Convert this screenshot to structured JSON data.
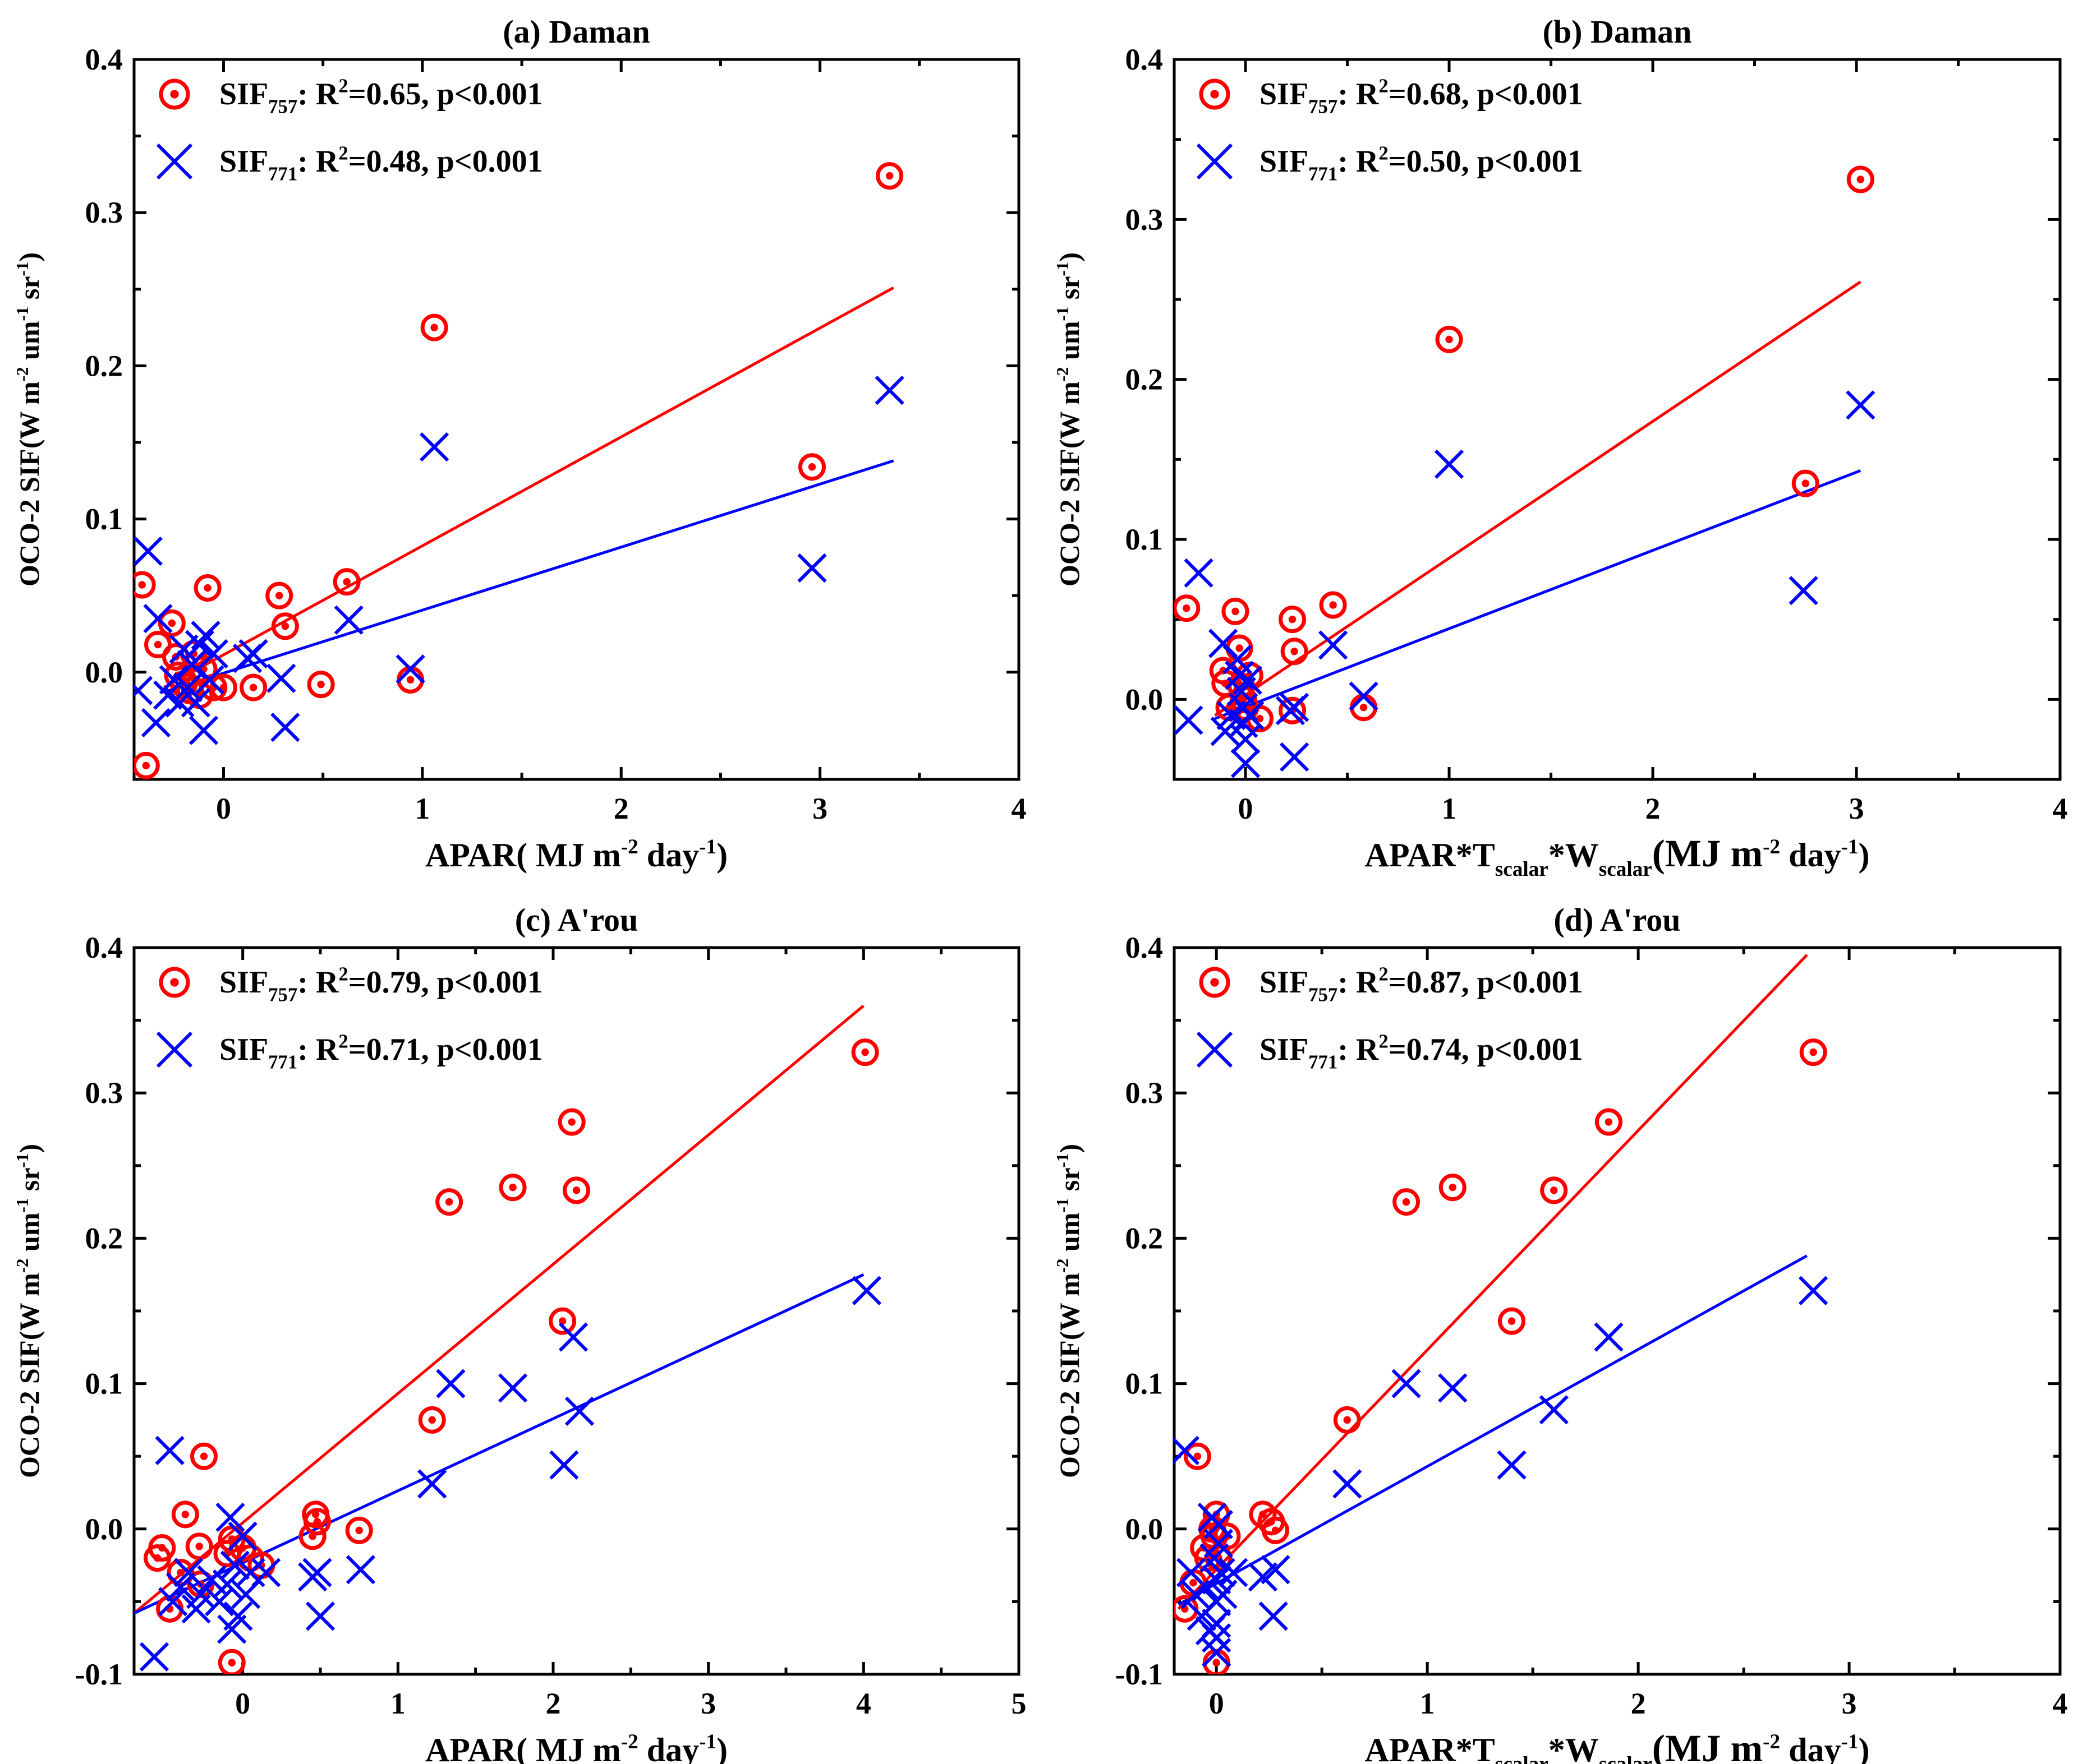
{
  "colors": {
    "sif757": "#ff0000",
    "sif771": "#0000ff",
    "axis": "#000000"
  },
  "chart_data": [
    {
      "type": "scatter",
      "title": "(a) Daman",
      "xlabel": "APAR( MJ m-2 day-1)",
      "ylabel": "OCO-2 SIF(W m-2 um-1 sr-1)",
      "xlim": [
        -0.45,
        4
      ],
      "ylim": [
        -0.07,
        0.4
      ],
      "xticks": [
        "0",
        "1",
        "2",
        "3",
        "4"
      ],
      "yticks": [
        "0.0",
        "0.1",
        "0.2",
        "0.3",
        "0.4"
      ],
      "series": [
        {
          "name": "SIF757: R2=0.65, p<0.001",
          "marker": "circle",
          "fit_line": [
            [
              -0.3,
              -0.01
            ],
            [
              3.37,
              0.251
            ]
          ],
          "points": [
            [
              -0.41,
              0.057
            ],
            [
              -0.39,
              -0.061
            ],
            [
              -0.33,
              0.018
            ],
            [
              -0.26,
              0.032
            ],
            [
              -0.24,
              0.01
            ],
            [
              -0.23,
              -0.002
            ],
            [
              -0.2,
              -0.008
            ],
            [
              -0.17,
              -0.012
            ],
            [
              -0.15,
              0.012
            ],
            [
              -0.12,
              -0.015
            ],
            [
              -0.1,
              0.002
            ],
            [
              -0.08,
              0.055
            ],
            [
              -0.05,
              -0.01
            ],
            [
              0.0,
              -0.01
            ],
            [
              0.15,
              -0.01
            ],
            [
              0.28,
              0.05
            ],
            [
              0.31,
              0.03
            ],
            [
              0.49,
              -0.008
            ],
            [
              0.62,
              0.059
            ],
            [
              0.94,
              -0.005
            ],
            [
              1.06,
              0.225
            ],
            [
              2.96,
              0.134
            ],
            [
              3.35,
              0.324
            ]
          ]
        },
        {
          "name": "SIF771: R2=0.48, p<0.001",
          "marker": "x",
          "fit_line": [
            [
              -0.3,
              -0.013
            ],
            [
              3.37,
              0.138
            ]
          ],
          "points": [
            [
              -0.43,
              -0.012
            ],
            [
              -0.38,
              0.079
            ],
            [
              -0.34,
              -0.033
            ],
            [
              -0.33,
              0.035
            ],
            [
              -0.28,
              -0.015
            ],
            [
              -0.25,
              -0.005
            ],
            [
              -0.22,
              -0.02
            ],
            [
              -0.2,
              0.015
            ],
            [
              -0.18,
              -0.01
            ],
            [
              -0.16,
              0.005
            ],
            [
              -0.14,
              -0.02
            ],
            [
              -0.12,
              0.018
            ],
            [
              -0.1,
              -0.038
            ],
            [
              -0.09,
              0.024
            ],
            [
              -0.07,
              -0.005
            ],
            [
              -0.05,
              0.012
            ],
            [
              0.12,
              0.009
            ],
            [
              0.15,
              0.012
            ],
            [
              0.29,
              -0.004
            ],
            [
              0.31,
              -0.036
            ],
            [
              0.63,
              0.034
            ],
            [
              0.94,
              0.002
            ],
            [
              1.06,
              0.147
            ],
            [
              2.96,
              0.068
            ],
            [
              3.35,
              0.184
            ]
          ]
        }
      ]
    },
    {
      "type": "scatter",
      "title": "(b) Daman",
      "xlabel": "APAR*Tscalar*Wscalar(MJ m-2 day-1)",
      "ylabel": "OCO-2 SIF(W m-2 um-1 sr-1)",
      "xlim": [
        -0.35,
        4
      ],
      "ylim": [
        -0.05,
        0.4
      ],
      "xticks": [
        "0",
        "1",
        "2",
        "3",
        "4"
      ],
      "yticks": [
        "0.0",
        "0.1",
        "0.2",
        "0.3",
        "0.4"
      ],
      "series": [
        {
          "name": "SIF757: R2=0.68, p<0.001",
          "marker": "circle",
          "fit_line": [
            [
              -0.15,
              -0.01
            ],
            [
              3.02,
              0.261
            ]
          ],
          "points": [
            [
              -0.29,
              0.057
            ],
            [
              -0.11,
              0.018
            ],
            [
              -0.1,
              0.01
            ],
            [
              -0.08,
              -0.005
            ],
            [
              -0.05,
              0.055
            ],
            [
              -0.03,
              0.032
            ],
            [
              -0.02,
              0.008
            ],
            [
              -0.01,
              0.0
            ],
            [
              0.0,
              -0.005
            ],
            [
              0.02,
              0.015
            ],
            [
              0.07,
              -0.012
            ],
            [
              0.23,
              -0.007
            ],
            [
              0.23,
              0.05
            ],
            [
              0.24,
              0.03
            ],
            [
              0.43,
              0.059
            ],
            [
              0.58,
              -0.005
            ],
            [
              1.0,
              0.225
            ],
            [
              2.75,
              0.135
            ],
            [
              3.02,
              0.325
            ]
          ]
        },
        {
          "name": "SIF771: R2=0.50, p<0.001",
          "marker": "x",
          "fit_line": [
            [
              -0.15,
              -0.012
            ],
            [
              3.02,
              0.143
            ]
          ],
          "points": [
            [
              -0.28,
              -0.013
            ],
            [
              -0.23,
              0.079
            ],
            [
              -0.11,
              0.035
            ],
            [
              -0.1,
              -0.02
            ],
            [
              -0.07,
              -0.01
            ],
            [
              -0.04,
              0.025
            ],
            [
              -0.03,
              0.015
            ],
            [
              -0.02,
              0.005
            ],
            [
              -0.01,
              -0.005
            ],
            [
              -0.01,
              -0.015
            ],
            [
              0.0,
              -0.025
            ],
            [
              0.0,
              -0.04
            ],
            [
              0.01,
              0.012
            ],
            [
              0.02,
              -0.01
            ],
            [
              0.22,
              -0.007
            ],
            [
              0.24,
              -0.005
            ],
            [
              0.24,
              -0.036
            ],
            [
              0.43,
              0.034
            ],
            [
              0.58,
              0.002
            ],
            [
              1.0,
              0.147
            ],
            [
              2.74,
              0.068
            ],
            [
              3.02,
              0.184
            ]
          ]
        }
      ]
    },
    {
      "type": "scatter",
      "title": "(c) A'rou",
      "xlabel": "APAR( MJ m-2 day-1)",
      "ylabel": "OCO-2 SIF(W m-2 um-1 sr-1)",
      "xlim": [
        -0.7,
        5
      ],
      "ylim": [
        -0.1,
        0.4
      ],
      "xticks": [
        "0",
        "1",
        "2",
        "3",
        "4",
        "5"
      ],
      "yticks": [
        "-0.1",
        "0.0",
        "0.1",
        "0.2",
        "0.3",
        "0.4"
      ],
      "series": [
        {
          "name": "SIF757: R2=0.79, p<0.001",
          "marker": "circle",
          "fit_line": [
            [
              -0.7,
              -0.058
            ],
            [
              4.0,
              0.36
            ]
          ],
          "points": [
            [
              -0.55,
              -0.02
            ],
            [
              -0.52,
              -0.013
            ],
            [
              -0.47,
              -0.055
            ],
            [
              -0.4,
              -0.03
            ],
            [
              -0.37,
              0.01
            ],
            [
              -0.28,
              -0.012
            ],
            [
              -0.27,
              -0.038
            ],
            [
              -0.25,
              0.05
            ],
            [
              -0.1,
              -0.017
            ],
            [
              -0.07,
              -0.007
            ],
            [
              -0.07,
              -0.092
            ],
            [
              0.0,
              -0.013
            ],
            [
              0.05,
              -0.02
            ],
            [
              0.12,
              -0.025
            ],
            [
              0.45,
              -0.005
            ],
            [
              0.47,
              0.01
            ],
            [
              0.48,
              0.005
            ],
            [
              0.75,
              -0.001
            ],
            [
              1.22,
              0.075
            ],
            [
              1.33,
              0.225
            ],
            [
              1.74,
              0.235
            ],
            [
              2.06,
              0.143
            ],
            [
              2.12,
              0.28
            ],
            [
              2.15,
              0.233
            ],
            [
              4.01,
              0.328
            ]
          ]
        },
        {
          "name": "SIF771: R2=0.71, p<0.001",
          "marker": "x",
          "fit_line": [
            [
              -0.7,
              -0.058
            ],
            [
              4.0,
              0.175
            ]
          ],
          "points": [
            [
              -0.57,
              -0.088
            ],
            [
              -0.47,
              0.054
            ],
            [
              -0.45,
              -0.05
            ],
            [
              -0.4,
              -0.04
            ],
            [
              -0.35,
              -0.03
            ],
            [
              -0.3,
              -0.055
            ],
            [
              -0.27,
              -0.045
            ],
            [
              -0.2,
              -0.035
            ],
            [
              -0.15,
              -0.05
            ],
            [
              -0.1,
              -0.038
            ],
            [
              -0.08,
              0.008
            ],
            [
              -0.07,
              -0.069
            ],
            [
              -0.05,
              -0.025
            ],
            [
              -0.03,
              -0.06
            ],
            [
              0.0,
              -0.005
            ],
            [
              0.02,
              -0.045
            ],
            [
              0.05,
              -0.03
            ],
            [
              0.15,
              -0.03
            ],
            [
              0.45,
              -0.033
            ],
            [
              0.48,
              -0.03
            ],
            [
              0.5,
              -0.06
            ],
            [
              0.76,
              -0.028
            ],
            [
              1.22,
              0.031
            ],
            [
              1.34,
              0.1
            ],
            [
              1.74,
              0.097
            ],
            [
              2.07,
              0.044
            ],
            [
              2.13,
              0.132
            ],
            [
              2.17,
              0.081
            ],
            [
              4.02,
              0.164
            ]
          ]
        }
      ]
    },
    {
      "type": "scatter",
      "title": "(d) A'rou",
      "xlabel": "APAR*Tscalar*Wscalar(MJ m-2 day-1)",
      "ylabel": "OCO-2 SIF(W m-2 um-1 sr-1)",
      "xlim": [
        -0.2,
        4
      ],
      "ylim": [
        -0.1,
        0.4
      ],
      "xticks": [
        "0",
        "1",
        "2",
        "3",
        "4"
      ],
      "yticks": [
        "-0.1",
        "0.0",
        "0.1",
        "0.2",
        "0.3",
        "0.4"
      ],
      "series": [
        {
          "name": "SIF757: R2=0.87, p<0.001",
          "marker": "circle",
          "fit_line": [
            [
              -0.18,
              -0.055
            ],
            [
              2.8,
              0.395
            ]
          ],
          "points": [
            [
              -0.15,
              -0.055
            ],
            [
              -0.11,
              -0.037
            ],
            [
              -0.09,
              0.05
            ],
            [
              -0.06,
              -0.013
            ],
            [
              -0.04,
              -0.02
            ],
            [
              -0.02,
              0.0
            ],
            [
              -0.01,
              -0.005
            ],
            [
              0.0,
              0.01
            ],
            [
              0.0,
              -0.092
            ],
            [
              0.01,
              -0.02
            ],
            [
              0.05,
              -0.005
            ],
            [
              0.22,
              0.01
            ],
            [
              0.26,
              0.005
            ],
            [
              0.28,
              -0.001
            ],
            [
              0.62,
              0.075
            ],
            [
              0.9,
              0.225
            ],
            [
              1.12,
              0.235
            ],
            [
              1.4,
              0.143
            ],
            [
              1.6,
              0.233
            ],
            [
              1.86,
              0.28
            ],
            [
              2.83,
              0.328
            ]
          ]
        },
        {
          "name": "SIF771: R2=0.74, p<0.001",
          "marker": "x",
          "fit_line": [
            [
              -0.18,
              -0.052
            ],
            [
              2.8,
              0.188
            ]
          ],
          "points": [
            [
              -0.15,
              0.054
            ],
            [
              -0.12,
              -0.03
            ],
            [
              -0.1,
              -0.045
            ],
            [
              -0.07,
              -0.06
            ],
            [
              -0.05,
              -0.04
            ],
            [
              -0.03,
              -0.07
            ],
            [
              -0.02,
              0.008
            ],
            [
              -0.01,
              -0.02
            ],
            [
              0.0,
              -0.035
            ],
            [
              0.0,
              -0.05
            ],
            [
              0.0,
              -0.065
            ],
            [
              0.0,
              -0.075
            ],
            [
              0.0,
              -0.085
            ],
            [
              0.01,
              0.003
            ],
            [
              0.01,
              -0.01
            ],
            [
              0.02,
              -0.03
            ],
            [
              0.03,
              -0.045
            ],
            [
              0.08,
              -0.03
            ],
            [
              0.22,
              -0.033
            ],
            [
              0.27,
              -0.06
            ],
            [
              0.28,
              -0.028
            ],
            [
              0.62,
              0.031
            ],
            [
              0.9,
              0.1
            ],
            [
              1.12,
              0.097
            ],
            [
              1.4,
              0.044
            ],
            [
              1.6,
              0.082
            ],
            [
              1.86,
              0.132
            ],
            [
              2.83,
              0.164
            ]
          ]
        }
      ]
    }
  ]
}
